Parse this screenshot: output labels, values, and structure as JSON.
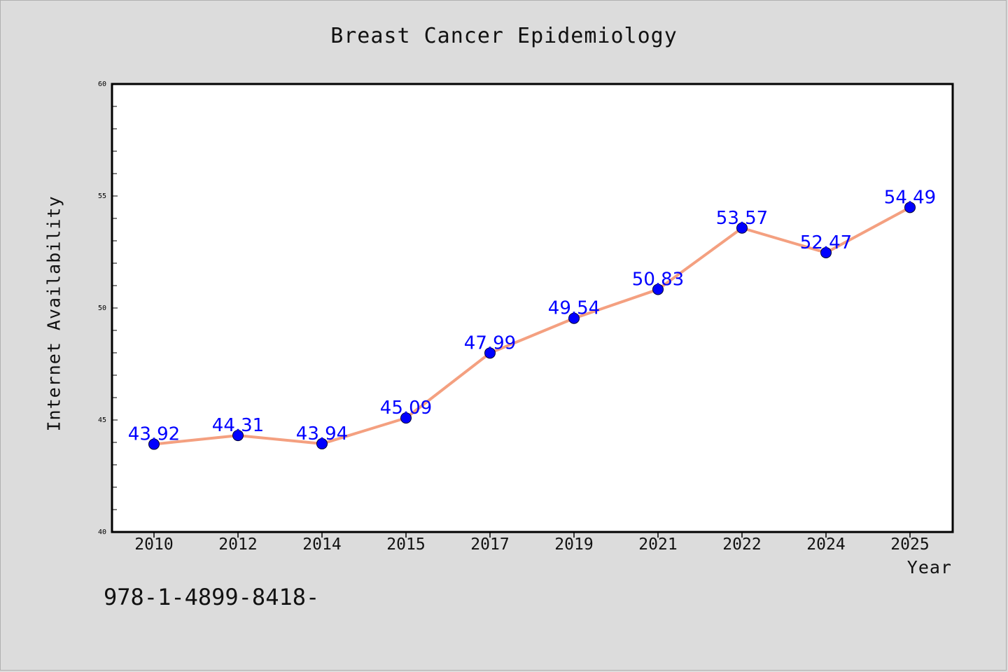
{
  "chart_data": {
    "type": "line",
    "title": "Breast Cancer Epidemiology",
    "xlabel": "Year",
    "ylabel": "Internet Availability",
    "categories": [
      "2010",
      "2012",
      "2014",
      "2015",
      "2017",
      "2019",
      "2021",
      "2022",
      "2024",
      "2025"
    ],
    "series": [
      {
        "values": [
          43.92,
          44.31,
          43.94,
          45.09,
          47.99,
          49.54,
          50.83,
          53.57,
          52.47,
          54.49
        ],
        "data_labels": [
          "43.92",
          "44.31",
          "43.94",
          "45.09",
          "47.99",
          "49.54",
          "50.83",
          "53.57",
          "52.47",
          "54.49"
        ]
      }
    ],
    "ylim": [
      40,
      60
    ],
    "yticks": [
      "40",
      "45",
      "50",
      "55",
      "60"
    ],
    "grid": false,
    "legend": "none",
    "colors": {
      "line": "#f4a080",
      "marker": "#0000ff",
      "label": "#0000ff",
      "plot_bg": "#ffffff",
      "page_bg": "#dcdcdc"
    }
  },
  "footnote": "978-1-4899-8418-"
}
